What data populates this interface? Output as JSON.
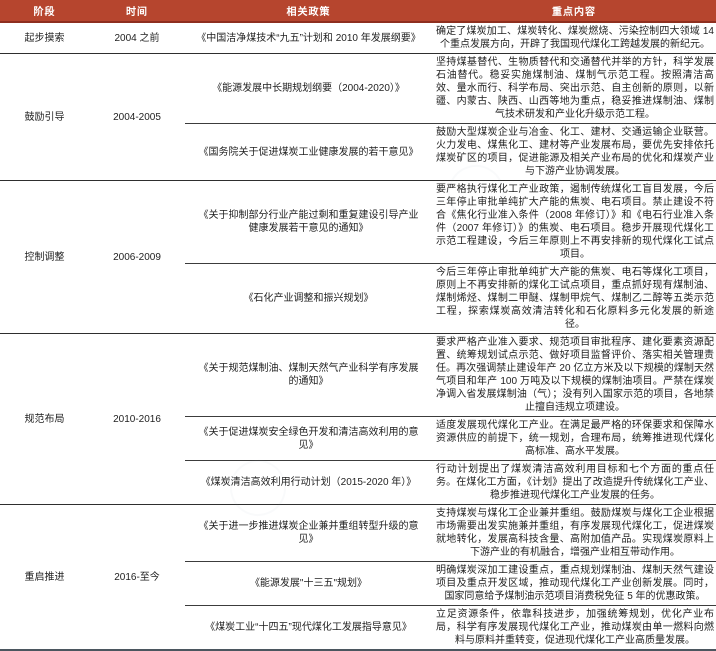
{
  "header": {
    "columns": [
      "阶段",
      "时间",
      "相关政策",
      "重点内容"
    ]
  },
  "colors": {
    "header_bg": "#b6452e",
    "header_border": "#8e2f1f",
    "header_text": "#ffffff",
    "body_text": "#1f1f1f",
    "group_divider": "#2e2e2e",
    "bottom_border": "#4b565f"
  },
  "groups": [
    {
      "stage": "起步摸索",
      "period": "2004 之前",
      "rows": [
        {
          "policy": "《中国洁净煤技术“九五”计划和 2010 年发展纲要》",
          "content": "确定了煤炭加工、煤炭转化、煤炭燃烧、污染控制四大领域 14 个重点发展方向，开辟了我国现代煤化工跨越发展的新纪元。"
        }
      ]
    },
    {
      "stage": "鼓励引导",
      "period": "2004-2005",
      "rows": [
        {
          "policy": "《能源发展中长期规划纲要（2004-2020）》",
          "content": "坚持煤基替代、生物质替代和交通替代并举的方针，科学发展石油替代。稳妥实施煤制油、煤制气示范工程。按照清洁高效、量水而行、科学布局、突出示范、自主创新的原则，以新疆、内蒙古、陕西、山西等地为重点，稳妥推进煤制油、煤制气技术研发和产业化升级示范工程。"
        },
        {
          "policy": "《国务院关于促进煤炭工业健康发展的若干意见》",
          "content": "鼓励大型煤炭企业与冶金、化工、建材、交通运输企业联营。火力发电、煤焦化工、建材等产业发展布局，要优先安排依托煤炭矿区的项目，促进能源及相关产业布局的优化和煤炭产业与下游产业协调发展。"
        }
      ]
    },
    {
      "stage": "控制调整",
      "period": "2006-2009",
      "rows": [
        {
          "policy": "《关于抑制部分行业产能过剩和重复建设引导产业健康发展若干意见的通知》",
          "content": "要严格执行煤化工产业政策，遏制传统煤化工盲目发展，今后三年停止审批单纯扩大产能的焦炭、电石项目。禁止建设不符合《焦化行业准入条件（2008 年修订）》和《电石行业准入条件（2007 年修订）》的焦炭、电石项目。稳步开展现代煤化工示范工程建设，今后三年原则上不再安排新的现代煤化工试点项目。"
        },
        {
          "policy": "《石化产业调整和振兴规划》",
          "content": "今后三年停止审批单纯扩大产能的焦炭、电石等煤化工项目，原则上不再安排新的煤化工试点项目，重点抓好现有煤制油、煤制烯烃、煤制二甲醚、煤制甲烷气、煤制乙二醇等五类示范工程，探索煤炭高效清洁转化和石化原料多元化发展的新途径。"
        }
      ]
    },
    {
      "stage": "规范布局",
      "period": "2010-2016",
      "rows": [
        {
          "policy": "《关于规范煤制油、煤制天然气产业科学有序发展的通知》",
          "content": "要求严格产业准入要求、规范项目审批程序、建化要素资源配置、统筹规划试点示范、做好项目监督评价、落实相关管理责任。再次强调禁止建设年产 20 亿立方米及以下规模的煤制天然气项目和年产 100 万吨及以下规模的煤制油项目。严禁在煤炭净调入省发展煤制油（气）；没有列入国家示范的项目，各地禁止擅自违规立项建设。"
        },
        {
          "policy": "《关于促进煤炭安全绿色开发和清洁高效利用的意见》",
          "content": "适度发展现代煤化工产业。在满足最严格的环保要求和保障水资源供应的前提下，统一规划，合理布局，统筹推进现代煤化高标准、高水平发展。"
        },
        {
          "policy": "《煤炭清洁高效利用行动计划（2015-2020 年）》",
          "content": "行动计划提出了煤炭清洁高效利用目标和七个方面的重点任务。在煤化工方面，《计划》提出了改造提升传统煤化工产业、稳步推进现代煤化工产业发展的任务。"
        }
      ]
    },
    {
      "stage": "重启推进",
      "period": "2016-至今",
      "rows": [
        {
          "policy": "《关于进一步推进煤炭企业兼并重组转型升级的意见》",
          "content": "支持煤炭与煤化工企业兼并重组。鼓励煤炭与煤化工企业根据市场需要出发实施兼并重组，有序发展现代煤化工，促进煤炭就地转化，发展高科技含量、高附加值产品。实现煤炭原料上下游产业的有机融合，增强产业相互带动作用。"
        },
        {
          "policy": "《能源发展\"十三五\"规划》",
          "content": "明确煤炭深加工建设重点，重点规划煤制油、煤制天然气建设项目及重点开发区域，推动现代煤化工产业创新发展。同时，国家同意给予煤制油示范项目消费税免征 5 年的优惠政策。"
        },
        {
          "policy": "《煤炭工业“十四五”现代煤化工发展指导意见》",
          "content": "立足资源条件，依靠科技进步，加强统筹规划，优化产业布局，科学有序发展现代煤化工产业，推动煤炭由单一燃料向燃料与原料并重转变，促进现代煤化工产业高质量发展。"
        }
      ]
    }
  ]
}
